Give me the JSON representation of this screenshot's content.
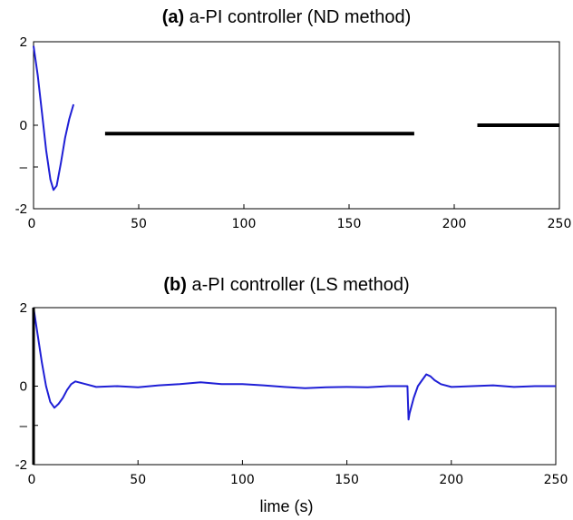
{
  "chart_data": [
    {
      "type": "line",
      "title_bold": "(a)",
      "title": "a-PI controller (ND method)",
      "xlabel": "",
      "ylabel": "",
      "xlim": [
        0,
        250
      ],
      "ylim": [
        -2,
        2
      ],
      "xticks": [
        "50",
        "100",
        "150",
        "200",
        "250"
      ],
      "xtick_values": [
        50,
        100,
        150,
        200,
        250
      ],
      "x0_label": "0",
      "yticks": [
        {
          "value": 2,
          "label": "2"
        },
        {
          "value": 0,
          "label": "0"
        },
        {
          "value": -1,
          "label": "–"
        },
        {
          "value": -2,
          "label": "-2"
        }
      ],
      "grid": false,
      "series": [
        {
          "color": "#1f1fd6",
          "x": [
            0,
            2,
            4,
            6,
            8,
            9.5,
            11,
            13,
            15,
            17,
            19
          ],
          "y": [
            1.9,
            1.2,
            0.3,
            -0.6,
            -1.3,
            -1.55,
            -1.45,
            -0.9,
            -0.3,
            0.15,
            0.5
          ]
        },
        {
          "color": "#000000",
          "x": [
            34,
            181
          ],
          "y": [
            -0.2,
            -0.2
          ]
        },
        {
          "color": "#000000",
          "x": [
            211,
            250
          ],
          "y": [
            0,
            0
          ]
        }
      ]
    },
    {
      "type": "line",
      "title_bold": "(b)",
      "title": "a-PI controller (LS method)",
      "xlabel": "lime (s)",
      "ylabel": "",
      "xlim": [
        0,
        250
      ],
      "ylim": [
        -2,
        2
      ],
      "xticks": [
        "50",
        "100",
        "150",
        "200",
        "250"
      ],
      "xtick_values": [
        50,
        100,
        150,
        200,
        250
      ],
      "x0_label": "0",
      "yticks": [
        {
          "value": 2,
          "label": "2"
        },
        {
          "value": 0,
          "label": "0"
        },
        {
          "value": -1,
          "label": "–"
        },
        {
          "value": -2,
          "label": "-2"
        }
      ],
      "grid": false,
      "series": [
        {
          "color": "#1f1fd6",
          "x": [
            0,
            2,
            4,
            6,
            8,
            10,
            12,
            14,
            16,
            18,
            20,
            25,
            30,
            40,
            50,
            60,
            70,
            80,
            90,
            100,
            110,
            120,
            130,
            140,
            150,
            160,
            170,
            179,
            179.5,
            180,
            182,
            184,
            186,
            188,
            190,
            192,
            195,
            200,
            210,
            220,
            230,
            240,
            250
          ],
          "y": [
            2,
            1.3,
            0.6,
            0.0,
            -0.4,
            -0.55,
            -0.45,
            -0.3,
            -0.1,
            0.05,
            0.12,
            0.05,
            -0.02,
            0.0,
            -0.03,
            0.02,
            0.05,
            0.1,
            0.05,
            0.05,
            0.02,
            -0.02,
            -0.05,
            -0.03,
            -0.02,
            -0.03,
            0.0,
            0.0,
            -0.85,
            -0.7,
            -0.3,
            0.0,
            0.15,
            0.3,
            0.25,
            0.15,
            0.05,
            -0.02,
            0.0,
            0.02,
            -0.02,
            0.0,
            0.0
          ]
        }
      ]
    }
  ]
}
